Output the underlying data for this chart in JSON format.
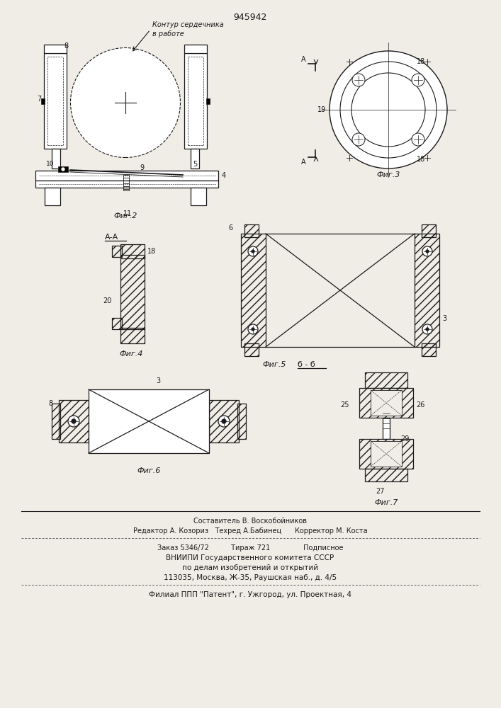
{
  "patent_number": "945942",
  "bg_color": "#f0ede6",
  "line_color": "#1a1a1a",
  "fig2_label": "Фиг.2",
  "fig3_label": "Фиг.3",
  "fig4_label": "Фиг.4",
  "fig5_label": "Фиг.5",
  "fig5_sublabel": "б - б",
  "fig6_label": "Фиг.6",
  "fig7_label": "Фиг.7",
  "annotation_line1": "Контур сердечника",
  "annotation_line2": "в работе",
  "footer_line1": "Составитель В. Воскобойников",
  "footer_line2": "Редактор А. Козориз   Техред А.Бабинец      Корректор М. Коста",
  "footer_line3": "Заказ 5346/72          Тираж 721               Подписное",
  "footer_line4": "ВНИИПИ Государственного комитета СССР",
  "footer_line5": "по делам изобретений и открытий",
  "footer_line6": "113035, Москва, Ж-35, Раушская наб., д. 4/5",
  "footer_line7": "Филиал ППП \"Патент\", г. Ужгород, ул. Проектная, 4"
}
